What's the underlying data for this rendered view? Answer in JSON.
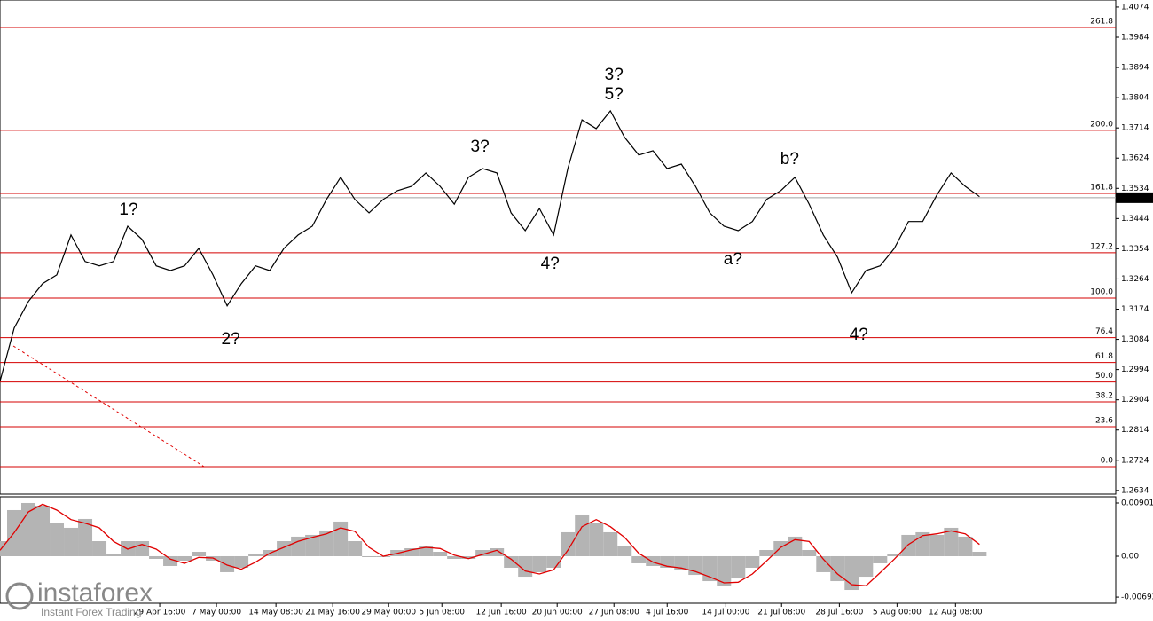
{
  "chart_data": [
    {
      "type": "line",
      "x": [
        0,
        1,
        2,
        3,
        4,
        5,
        6,
        7,
        8,
        9,
        10,
        11,
        12,
        13,
        14,
        15,
        16,
        17,
        18,
        19,
        20,
        21,
        22,
        23,
        24,
        25,
        26,
        27,
        28,
        29,
        30,
        31,
        32,
        33,
        34,
        35,
        36,
        37,
        38,
        39,
        40,
        41,
        42,
        43,
        44,
        45,
        46,
        47,
        48,
        49,
        50,
        51,
        52,
        53,
        54,
        55,
        56,
        57,
        58,
        59,
        60,
        61,
        62,
        63,
        64,
        65,
        66,
        67,
        68,
        69
      ],
      "values": [
        1.2959,
        1.3118,
        1.3197,
        1.325,
        1.3276,
        1.3395,
        1.3316,
        1.3303,
        1.3316,
        1.3421,
        1.3382,
        1.3303,
        1.3289,
        1.3303,
        1.3355,
        1.3276,
        1.3184,
        1.325,
        1.3303,
        1.3289,
        1.3355,
        1.3395,
        1.3421,
        1.3501,
        1.3567,
        1.3501,
        1.3461,
        1.3501,
        1.3527,
        1.354,
        1.358,
        1.354,
        1.3487,
        1.3567,
        1.3593,
        1.358,
        1.3461,
        1.3408,
        1.3474,
        1.3395,
        1.3593,
        1.3738,
        1.3712,
        1.3765,
        1.3686,
        1.3633,
        1.3646,
        1.3593,
        1.3606,
        1.354,
        1.3461,
        1.3421,
        1.3408,
        1.3435,
        1.3501,
        1.3527,
        1.3567,
        1.3487,
        1.3395,
        1.3329,
        1.3223,
        1.3289,
        1.3303,
        1.3355,
        1.3435,
        1.3435,
        1.3514,
        1.358,
        1.354,
        1.3509
      ],
      "color": "#000000",
      "xlim": [
        0,
        78.6
      ],
      "ylim": [
        1.2623,
        1.4095
      ],
      "yticks": [
        1.4074,
        1.3984,
        1.3894,
        1.3804,
        1.3714,
        1.3624,
        1.3534,
        1.3444,
        1.3354,
        1.3264,
        1.3174,
        1.3084,
        1.2994,
        1.2904,
        1.2814,
        1.2724,
        1.2634
      ],
      "xticks": [
        {
          "value": 11.25,
          "label": "29 Apr 16:00"
        },
        {
          "value": 15.25,
          "label": "7 May 00:00"
        },
        {
          "value": 19.44,
          "label": "14 May 08:00"
        },
        {
          "value": 23.44,
          "label": "21 May 16:00"
        },
        {
          "value": 27.38,
          "label": "29 May 00:00"
        },
        {
          "value": 31.13,
          "label": "5 Jun 08:00"
        },
        {
          "value": 35.31,
          "label": "12 Jun 16:00"
        },
        {
          "value": 39.25,
          "label": "20 Jun 00:00"
        },
        {
          "value": 43.25,
          "label": "27 Jun 08:00"
        },
        {
          "value": 47,
          "label": "4 Jul 16:00"
        },
        {
          "value": 51.13,
          "label": "14 Jul 00:00"
        },
        {
          "value": 55.06,
          "label": "21 Jul 08:00"
        },
        {
          "value": 59.13,
          "label": "28 Jul 16:00"
        },
        {
          "value": 63.19,
          "label": "5 Aug 00:00"
        },
        {
          "value": 67.31,
          "label": "12 Aug 08:00"
        }
      ],
      "last_price": 1.3506,
      "level_color": "#d40000",
      "levels": [
        {
          "label": "261.8",
          "value": 1.4013
        },
        {
          "label": "200.0",
          "value": 1.3707
        },
        {
          "label": "161.8",
          "value": 1.3519
        },
        {
          "label": "127.2",
          "value": 1.3342
        },
        {
          "label": "100.0",
          "value": 1.3207
        },
        {
          "label": "76.4",
          "value": 1.3089
        },
        {
          "label": "61.8",
          "value": 1.3015
        },
        {
          "label": "50.0",
          "value": 1.2957
        },
        {
          "label": "38.2",
          "value": 1.2898
        },
        {
          "label": "23.6",
          "value": 1.2824
        },
        {
          "label": "0.0",
          "value": 1.2705
        }
      ],
      "annotations": [
        {
          "text": "1?",
          "x": 9.06,
          "y": 1.3469,
          "color": "#e8141b"
        },
        {
          "text": "2?",
          "x": 16.25,
          "y": 1.3083,
          "color": "#e8141b"
        },
        {
          "text": "3?",
          "x": 33.81,
          "y": 1.3657,
          "color": "#e8141b"
        },
        {
          "text": "4?",
          "x": 38.75,
          "y": 1.3308,
          "color": "#e8141b"
        },
        {
          "text": "3?",
          "x": 43.25,
          "y": 1.3871,
          "color": "#0000ff"
        },
        {
          "text": "5?",
          "x": 43.25,
          "y": 1.3812,
          "color": "#e8141b"
        },
        {
          "text": "a?",
          "x": 51.63,
          "y": 1.3321,
          "color": "#e8141b"
        },
        {
          "text": "b?",
          "x": 55.63,
          "y": 1.362,
          "color": "#e8141b"
        },
        {
          "text": "4?",
          "x": 60.5,
          "y": 1.3096,
          "color": "#0000ff"
        }
      ]
    },
    {
      "type": "bar",
      "values": [
        0.00255,
        0.00781,
        0.00901,
        0.00856,
        0.00556,
        0.00481,
        0.00631,
        0.00255,
        0.0003,
        0.00255,
        0.00255,
        -0.00045,
        -0.00165,
        -0.00075,
        0.00075,
        -0.00075,
        -0.0027,
        -0.00195,
        0.0003,
        0.00105,
        0.00255,
        0.00331,
        0.00361,
        0.00436,
        0.00586,
        0.00255,
        -0.00015,
        -0.00015,
        0.00105,
        0.00135,
        0.0018,
        0.00075,
        -0.00045,
        -0.00045,
        0.00105,
        0.00135,
        -0.00195,
        -0.00346,
        -0.0027,
        -0.00195,
        0.00406,
        0.00706,
        0.00556,
        0.00406,
        0.0018,
        -0.0012,
        -0.00165,
        -0.00195,
        -0.00225,
        -0.00316,
        -0.00421,
        -0.00496,
        -0.00376,
        -0.00195,
        0.00105,
        0.00255,
        0.00331,
        0.00105,
        -0.0027,
        -0.00421,
        -0.00571,
        -0.00346,
        -0.0012,
        0.0003,
        0.00361,
        0.00406,
        0.00361,
        0.00481,
        0.00331,
        0.00075
      ],
      "color": "#b4b4b4",
      "signal": {
        "color": "#e00000",
        "values": [
          0.001,
          0.004,
          0.0075,
          0.0088,
          0.0078,
          0.0062,
          0.0056,
          0.0048,
          0.0025,
          0.0012,
          0.002,
          0.0012,
          -0.0005,
          -0.0012,
          -0.0002,
          -0.0003,
          -0.0015,
          -0.0022,
          -0.001,
          0.0005,
          0.0015,
          0.0025,
          0.0032,
          0.0038,
          0.0048,
          0.0042,
          0.0015,
          0,
          0.0005,
          0.0011,
          0.0015,
          0.0013,
          0.0002,
          -0.0004,
          0.0003,
          0.001,
          -0.0005,
          -0.0025,
          -0.003,
          -0.0023,
          0.001,
          0.005,
          0.0062,
          0.005,
          0.0032,
          0.0005,
          -0.001,
          -0.0017,
          -0.002,
          -0.0026,
          -0.0035,
          -0.0045,
          -0.0044,
          -0.003,
          -0.0008,
          0.0015,
          0.0028,
          0.0025,
          -0.0005,
          -0.003,
          -0.0048,
          -0.005,
          -0.0028,
          -0.0005,
          0.002,
          0.0035,
          0.0038,
          0.0043,
          0.0038,
          0.002
        ]
      },
      "xlim": [
        0,
        78.6
      ],
      "ylim": [
        -0.00796,
        0.01006
      ],
      "yticks": [
        0.00901,
        {
          "value": 0,
          "label": "0.00"
        },
        -0.00692
      ]
    }
  ],
  "watermark": {
    "brand": "instaforex",
    "tagline": "Instant Forex Trading"
  }
}
